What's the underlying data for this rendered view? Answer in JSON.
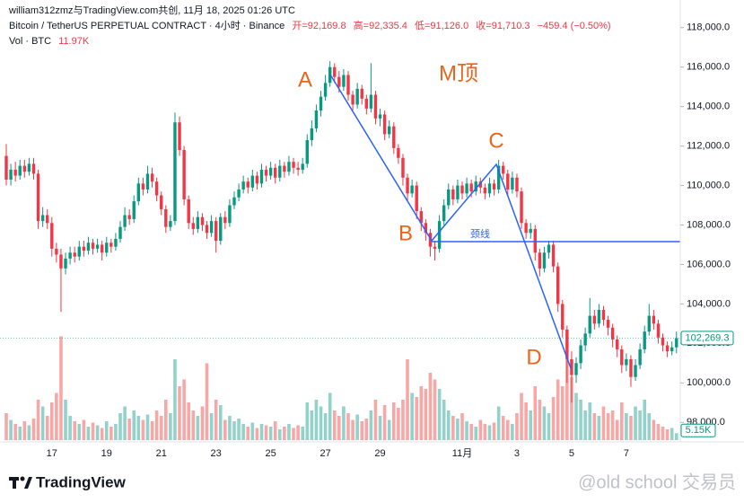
{
  "chart_data": {
    "type": "candlestick",
    "header": {
      "byline": "william312zmz与TradingView.com共创, 11月 18, 2025 01:26 UTC",
      "symbol": "Bitcoin / TetherUS PERPETUAL CONTRACT · 4小时 · Binance",
      "ohlc": [
        "开=92,169.8",
        "高=92,335.4",
        "低=91,126.0",
        "收=91,710.3"
      ],
      "change": "−459.4 (−0.50%)",
      "vol_label": "Vol · BTC",
      "vol_value": "11.97K"
    },
    "annotations": {
      "a": "A",
      "b": "B",
      "c": "C",
      "d": "D",
      "pattern": "M顶",
      "neckline": "颈线"
    },
    "brand": "TradingView",
    "watermark": "@old school 交易员",
    "categories": [
      null,
      null,
      null,
      null,
      null,
      null,
      null,
      null,
      null,
      null,
      "17",
      null,
      null,
      null,
      null,
      null,
      null,
      null,
      null,
      null,
      null,
      null,
      "19",
      null,
      null,
      null,
      null,
      null,
      null,
      null,
      null,
      null,
      null,
      null,
      "21",
      null,
      null,
      null,
      null,
      null,
      null,
      null,
      null,
      null,
      null,
      null,
      "23",
      null,
      null,
      null,
      null,
      null,
      null,
      null,
      null,
      null,
      null,
      null,
      "25",
      null,
      null,
      null,
      null,
      null,
      null,
      null,
      null,
      null,
      null,
      null,
      "27",
      null,
      null,
      null,
      null,
      null,
      null,
      null,
      null,
      null,
      null,
      null,
      "29",
      null,
      null,
      null,
      null,
      null,
      null,
      null,
      null,
      null,
      null,
      null,
      null,
      null,
      null,
      null,
      null,
      null,
      "11月",
      null,
      null,
      null,
      null,
      null,
      null,
      null,
      null,
      null,
      null,
      null,
      "3",
      null,
      null,
      null,
      null,
      null,
      null,
      null,
      null,
      null,
      null,
      null,
      "5",
      null,
      null,
      null,
      null,
      null,
      null,
      null,
      null,
      null,
      null,
      null,
      "7",
      null,
      null,
      null,
      null,
      null,
      null,
      null,
      null,
      null,
      null,
      null
    ],
    "open": [
      111500,
      110300,
      110800,
      110500,
      111000,
      110700,
      111100,
      110600,
      108200,
      108500,
      108100,
      106800,
      106500,
      105800,
      106300,
      106600,
      106400,
      106900,
      106700,
      107100,
      106800,
      107000,
      106600,
      107100,
      106900,
      107300,
      107900,
      108500,
      108300,
      109200,
      110100,
      109800,
      110600,
      110200,
      109500,
      108800,
      107900,
      108200,
      113200,
      111800,
      109300,
      108100,
      107800,
      108400,
      108000,
      107600,
      108200,
      107200,
      108400,
      108100,
      109000,
      109400,
      109800,
      110200,
      109900,
      110500,
      110100,
      110800,
      110500,
      110900,
      110400,
      111000,
      110700,
      111200,
      110900,
      110800,
      111100,
      112300,
      112900,
      113800,
      114500,
      115200,
      116000,
      115500,
      115000,
      115600,
      114600,
      114100,
      114900,
      114400,
      113900,
      114600,
      113400,
      113600,
      112600,
      113000,
      111900,
      111400,
      110400,
      109600,
      110000,
      108700,
      108100,
      107600,
      106900,
      106800,
      108200,
      109000,
      109800,
      109300,
      110000,
      109600,
      110100,
      109700,
      110200,
      109900,
      109600,
      110100,
      109800,
      111000,
      110600,
      109800,
      110400,
      109700,
      108100,
      107600,
      107800,
      106600,
      105800,
      106600,
      107000,
      105900,
      104000,
      102700,
      101200,
      100400,
      101000,
      101900,
      102500,
      103400,
      103000,
      103700,
      103200,
      102800,
      102200,
      101700,
      100900,
      101200,
      100300,
      100900,
      101700,
      102600,
      103400,
      103000,
      102300,
      101900,
      101600,
      101800
    ],
    "high": [
      112100,
      111100,
      111200,
      111300,
      111300,
      111400,
      111400,
      110800,
      108900,
      108800,
      108400,
      107100,
      106800,
      106600,
      106900,
      106900,
      107200,
      107200,
      107400,
      107300,
      107300,
      107200,
      107400,
      107300,
      107600,
      108200,
      108900,
      108800,
      109500,
      110400,
      110400,
      111000,
      110900,
      110400,
      109700,
      109000,
      108500,
      113700,
      113500,
      112000,
      109500,
      108400,
      108700,
      108600,
      108200,
      108500,
      108400,
      108600,
      108700,
      109300,
      109700,
      110100,
      110500,
      110400,
      110800,
      110700,
      111100,
      111000,
      111200,
      111100,
      111300,
      111200,
      111500,
      111400,
      111200,
      111400,
      112600,
      113300,
      114100,
      114800,
      115600,
      116300,
      116200,
      115800,
      115900,
      115800,
      114800,
      115200,
      115100,
      114600,
      116200,
      114800,
      113900,
      113800,
      113300,
      113200,
      112100,
      111600,
      110600,
      110300,
      110200,
      108900,
      108300,
      107800,
      107200,
      108500,
      109300,
      110100,
      110000,
      110300,
      110200,
      110400,
      110300,
      110500,
      110400,
      110100,
      110400,
      110300,
      111300,
      111200,
      110800,
      110700,
      110600,
      109900,
      108300,
      108100,
      108000,
      106800,
      106900,
      107200,
      107200,
      106100,
      104200,
      102900,
      101600,
      101300,
      102200,
      102800,
      104300,
      103700,
      104000,
      103900,
      103400,
      103000,
      102400,
      101900,
      101500,
      101400,
      101200,
      102000,
      102900,
      104000,
      103700,
      103200,
      102500,
      102100,
      102100,
      102600
    ],
    "low": [
      110000,
      110000,
      110200,
      110300,
      110400,
      110500,
      110300,
      107800,
      107900,
      107800,
      106400,
      106100,
      103600,
      105500,
      106000,
      106100,
      106200,
      106400,
      106500,
      106500,
      106600,
      106200,
      106400,
      106600,
      106700,
      107100,
      107700,
      108000,
      108100,
      109000,
      109500,
      109600,
      109900,
      109200,
      108500,
      107600,
      107700,
      108000,
      111500,
      109000,
      107800,
      107500,
      107600,
      107700,
      107300,
      107400,
      106600,
      107000,
      107800,
      107900,
      108800,
      109200,
      109600,
      109600,
      109700,
      109800,
      109900,
      110200,
      110300,
      110100,
      110200,
      110400,
      110500,
      110600,
      110500,
      110600,
      110900,
      112000,
      112700,
      113500,
      114300,
      115000,
      115200,
      114700,
      114800,
      114300,
      113800,
      113900,
      114100,
      113600,
      113700,
      113100,
      113000,
      112300,
      112400,
      111600,
      111100,
      110000,
      109200,
      109400,
      108300,
      107700,
      107200,
      106400,
      106200,
      106600,
      108000,
      108800,
      109000,
      109100,
      109300,
      109400,
      109400,
      109500,
      109600,
      109300,
      109400,
      109500,
      109600,
      110300,
      109500,
      109600,
      109400,
      107800,
      107300,
      107300,
      106200,
      105400,
      105600,
      106300,
      105600,
      103600,
      102300,
      100000,
      99000,
      100000,
      100700,
      101600,
      102300,
      102700,
      102800,
      102900,
      102400,
      101800,
      101300,
      100500,
      100600,
      99800,
      100100,
      100700,
      101500,
      102400,
      102700,
      102000,
      101600,
      101300,
      101400,
      101500
    ],
    "close": [
      110300,
      110800,
      110500,
      111000,
      110700,
      111100,
      110600,
      108200,
      108500,
      108100,
      106800,
      106500,
      105800,
      106300,
      106600,
      106400,
      106900,
      106700,
      107100,
      106800,
      107000,
      106600,
      107100,
      106900,
      107300,
      107900,
      108500,
      108300,
      109200,
      110100,
      109800,
      110600,
      110200,
      109500,
      108800,
      107900,
      108200,
      113200,
      111800,
      109300,
      108100,
      107800,
      108400,
      108000,
      107600,
      108200,
      107200,
      108400,
      108100,
      109000,
      109400,
      109800,
      110200,
      109900,
      110500,
      110100,
      110800,
      110500,
      110900,
      110400,
      111000,
      110700,
      111200,
      110900,
      110800,
      111100,
      112300,
      112900,
      113800,
      114500,
      115200,
      116000,
      115500,
      115000,
      115600,
      114600,
      114100,
      114900,
      114400,
      113900,
      114600,
      113400,
      113600,
      112600,
      113000,
      111900,
      111400,
      110400,
      109600,
      110000,
      108700,
      108100,
      107600,
      106900,
      106800,
      108200,
      109000,
      109800,
      109300,
      110000,
      109600,
      110100,
      109700,
      110200,
      109900,
      109600,
      110100,
      109800,
      111000,
      110600,
      109800,
      110400,
      109700,
      108100,
      107600,
      107800,
      106600,
      105800,
      106600,
      107000,
      105900,
      104000,
      102700,
      101200,
      100400,
      101000,
      101900,
      102500,
      103400,
      103000,
      103700,
      103200,
      102800,
      102200,
      101700,
      100900,
      101200,
      100300,
      100900,
      101700,
      102600,
      103400,
      103000,
      102300,
      101900,
      101600,
      101800,
      102269.3
    ],
    "volume": [
      20,
      15,
      12,
      10,
      14,
      11,
      16,
      30,
      25,
      18,
      28,
      35,
      77,
      30,
      18,
      14,
      12,
      15,
      10,
      13,
      11,
      9,
      14,
      10,
      12,
      20,
      25,
      16,
      22,
      18,
      15,
      19,
      14,
      22,
      18,
      30,
      20,
      60,
      40,
      45,
      28,
      22,
      18,
      25,
      57,
      20,
      30,
      26,
      15,
      18,
      14,
      16,
      12,
      10,
      13,
      9,
      12,
      11,
      10,
      14,
      8,
      10,
      12,
      9,
      11,
      10,
      28,
      22,
      30,
      25,
      20,
      35,
      22,
      18,
      25,
      20,
      15,
      19,
      14,
      16,
      22,
      30,
      18,
      26,
      15,
      28,
      24,
      30,
      60,
      35,
      32,
      40,
      38,
      50,
      45,
      38,
      30,
      22,
      18,
      16,
      20,
      14,
      12,
      10,
      15,
      12,
      11,
      13,
      25,
      18,
      15,
      12,
      20,
      35,
      28,
      22,
      40,
      30,
      25,
      20,
      32,
      45,
      40,
      60,
      47,
      35,
      30,
      22,
      28,
      20,
      18,
      25,
      20,
      22,
      15,
      28,
      20,
      18,
      25,
      22,
      30,
      20,
      15,
      12,
      10,
      8,
      9,
      5.15
    ],
    "price_tag": "102,269.3",
    "volume_tag": "5.15K",
    "up_color": "#089981",
    "down_color": "#f23645",
    "volume_up_color": "#92d2cb",
    "volume_down_color": "#f7a8a6",
    "ylim": [
      97100,
      119400
    ],
    "volume_ylim": [
      0,
      80
    ],
    "yticks": [
      {
        "value": 98000,
        "label": "98,000.0"
      },
      {
        "value": 100000,
        "label": "100,000.0"
      },
      {
        "value": 102000,
        "label": "102,000.0"
      },
      {
        "value": 104000,
        "label": "104,000.0"
      },
      {
        "value": 106000,
        "label": "106,000.0"
      },
      {
        "value": 108000,
        "label": "108,000.0"
      },
      {
        "value": 110000,
        "label": "110,000.0"
      },
      {
        "value": 112000,
        "label": "112,000.0"
      },
      {
        "value": 114000,
        "label": "114,000.0"
      },
      {
        "value": 116000,
        "label": "116,000.0"
      },
      {
        "value": 118000,
        "label": "118,000.0"
      }
    ],
    "grid": false
  }
}
